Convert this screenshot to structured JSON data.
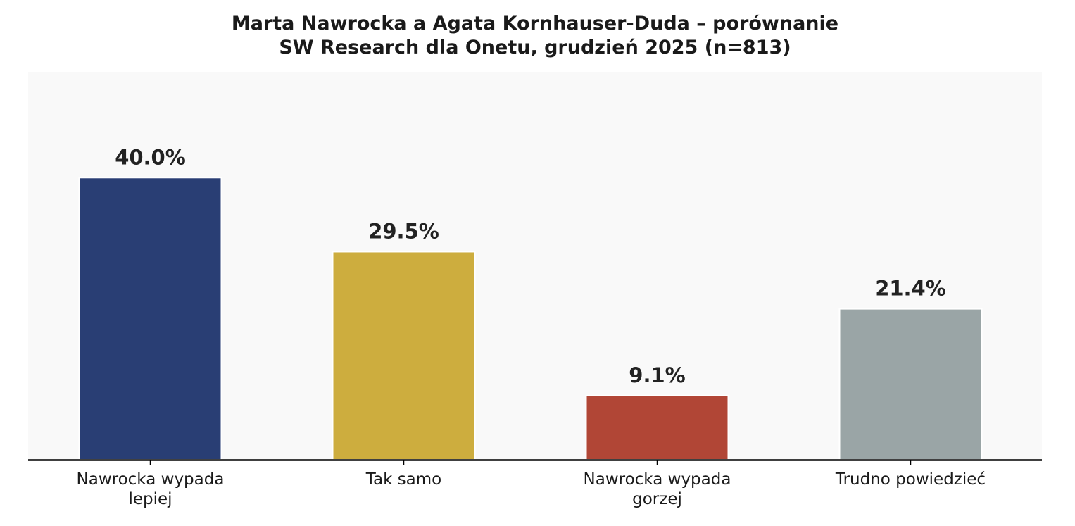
{
  "chart_data": {
    "type": "bar",
    "title": "Marta Nawrocka a Agata Kornhauser-Duda – porównanie",
    "subtitle": "SW Research dla Onetu, grudzień 2025 (n=813)",
    "categories": [
      [
        "Nawrocka wypada",
        "lepiej"
      ],
      [
        "Tak samo"
      ],
      [
        "Nawrocka wypada",
        "gorzej"
      ],
      [
        "Trudno powiedzieć"
      ]
    ],
    "values": [
      40.0,
      29.5,
      9.1,
      21.4
    ],
    "value_labels": [
      "40.0%",
      "29.5%",
      "9.1%",
      "21.4%"
    ],
    "colors": [
      "#293e74",
      "#cdad3e",
      "#b14636",
      "#9aa5a6"
    ],
    "ylim": [
      0,
      55
    ],
    "grid": false,
    "legend": "none",
    "plot_background": "#f9f9f9",
    "axis_color": "#000000"
  }
}
